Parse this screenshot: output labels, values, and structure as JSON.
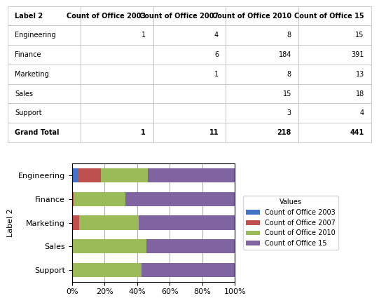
{
  "chart_data": [
    {
      "type": "table",
      "ylabel": "Label 2",
      "categories": [
        "Engineering",
        "Finance",
        "Marketing",
        "Sales",
        "Support",
        "Grand Total"
      ],
      "series": [
        {
          "name": "Count of Office 2003",
          "values": [
            1,
            null,
            null,
            null,
            null,
            1
          ]
        },
        {
          "name": "Count of Office 2007",
          "values": [
            4,
            6,
            1,
            null,
            null,
            11
          ]
        },
        {
          "name": "Count of Office 2010",
          "values": [
            8,
            184,
            8,
            15,
            3,
            218
          ]
        },
        {
          "name": "Count of Office 15",
          "values": [
            15,
            391,
            13,
            18,
            4,
            441
          ]
        }
      ]
    },
    {
      "type": "bar",
      "orientation": "horizontal",
      "stacked": true,
      "ylabel": "Label 2",
      "categories": [
        "Support",
        "Sales",
        "Marketing",
        "Finance",
        "Engineering"
      ],
      "series": [
        {
          "name": "Count of Office 2003",
          "color": "#4472C4",
          "values": [
            0,
            0,
            0,
            0,
            3.5714285714285716
          ]
        },
        {
          "name": "Count of Office 2007",
          "color": "#C0504D",
          "values": [
            0,
            0,
            4.545454545454546,
            1.032702237521514,
            14.285714285714286
          ]
        },
        {
          "name": "Count of Office 2010",
          "color": "#9BBB59",
          "values": [
            42.857142857142854,
            45.45454545454545,
            36.36363636363637,
            31.6695352839931,
            28.571428571428573
          ]
        },
        {
          "name": "Count of Office 15",
          "color": "#8064A2",
          "values": [
            57.14285714285714,
            54.54545454545455,
            59.09090909090909,
            67.2977624784853,
            53.57142857142857
          ]
        }
      ],
      "xlim": [
        0,
        100
      ],
      "xticks": [
        {
          "value": 0,
          "label": "0%"
        },
        {
          "value": 20,
          "label": "20%"
        },
        {
          "value": 40,
          "label": "40%"
        },
        {
          "value": 60,
          "label": "60%"
        },
        {
          "value": 80,
          "label": "80%"
        },
        {
          "value": 100,
          "label": "100%"
        }
      ],
      "grid": true,
      "legend": "center left",
      "annotations": [
        "Values"
      ]
    }
  ]
}
